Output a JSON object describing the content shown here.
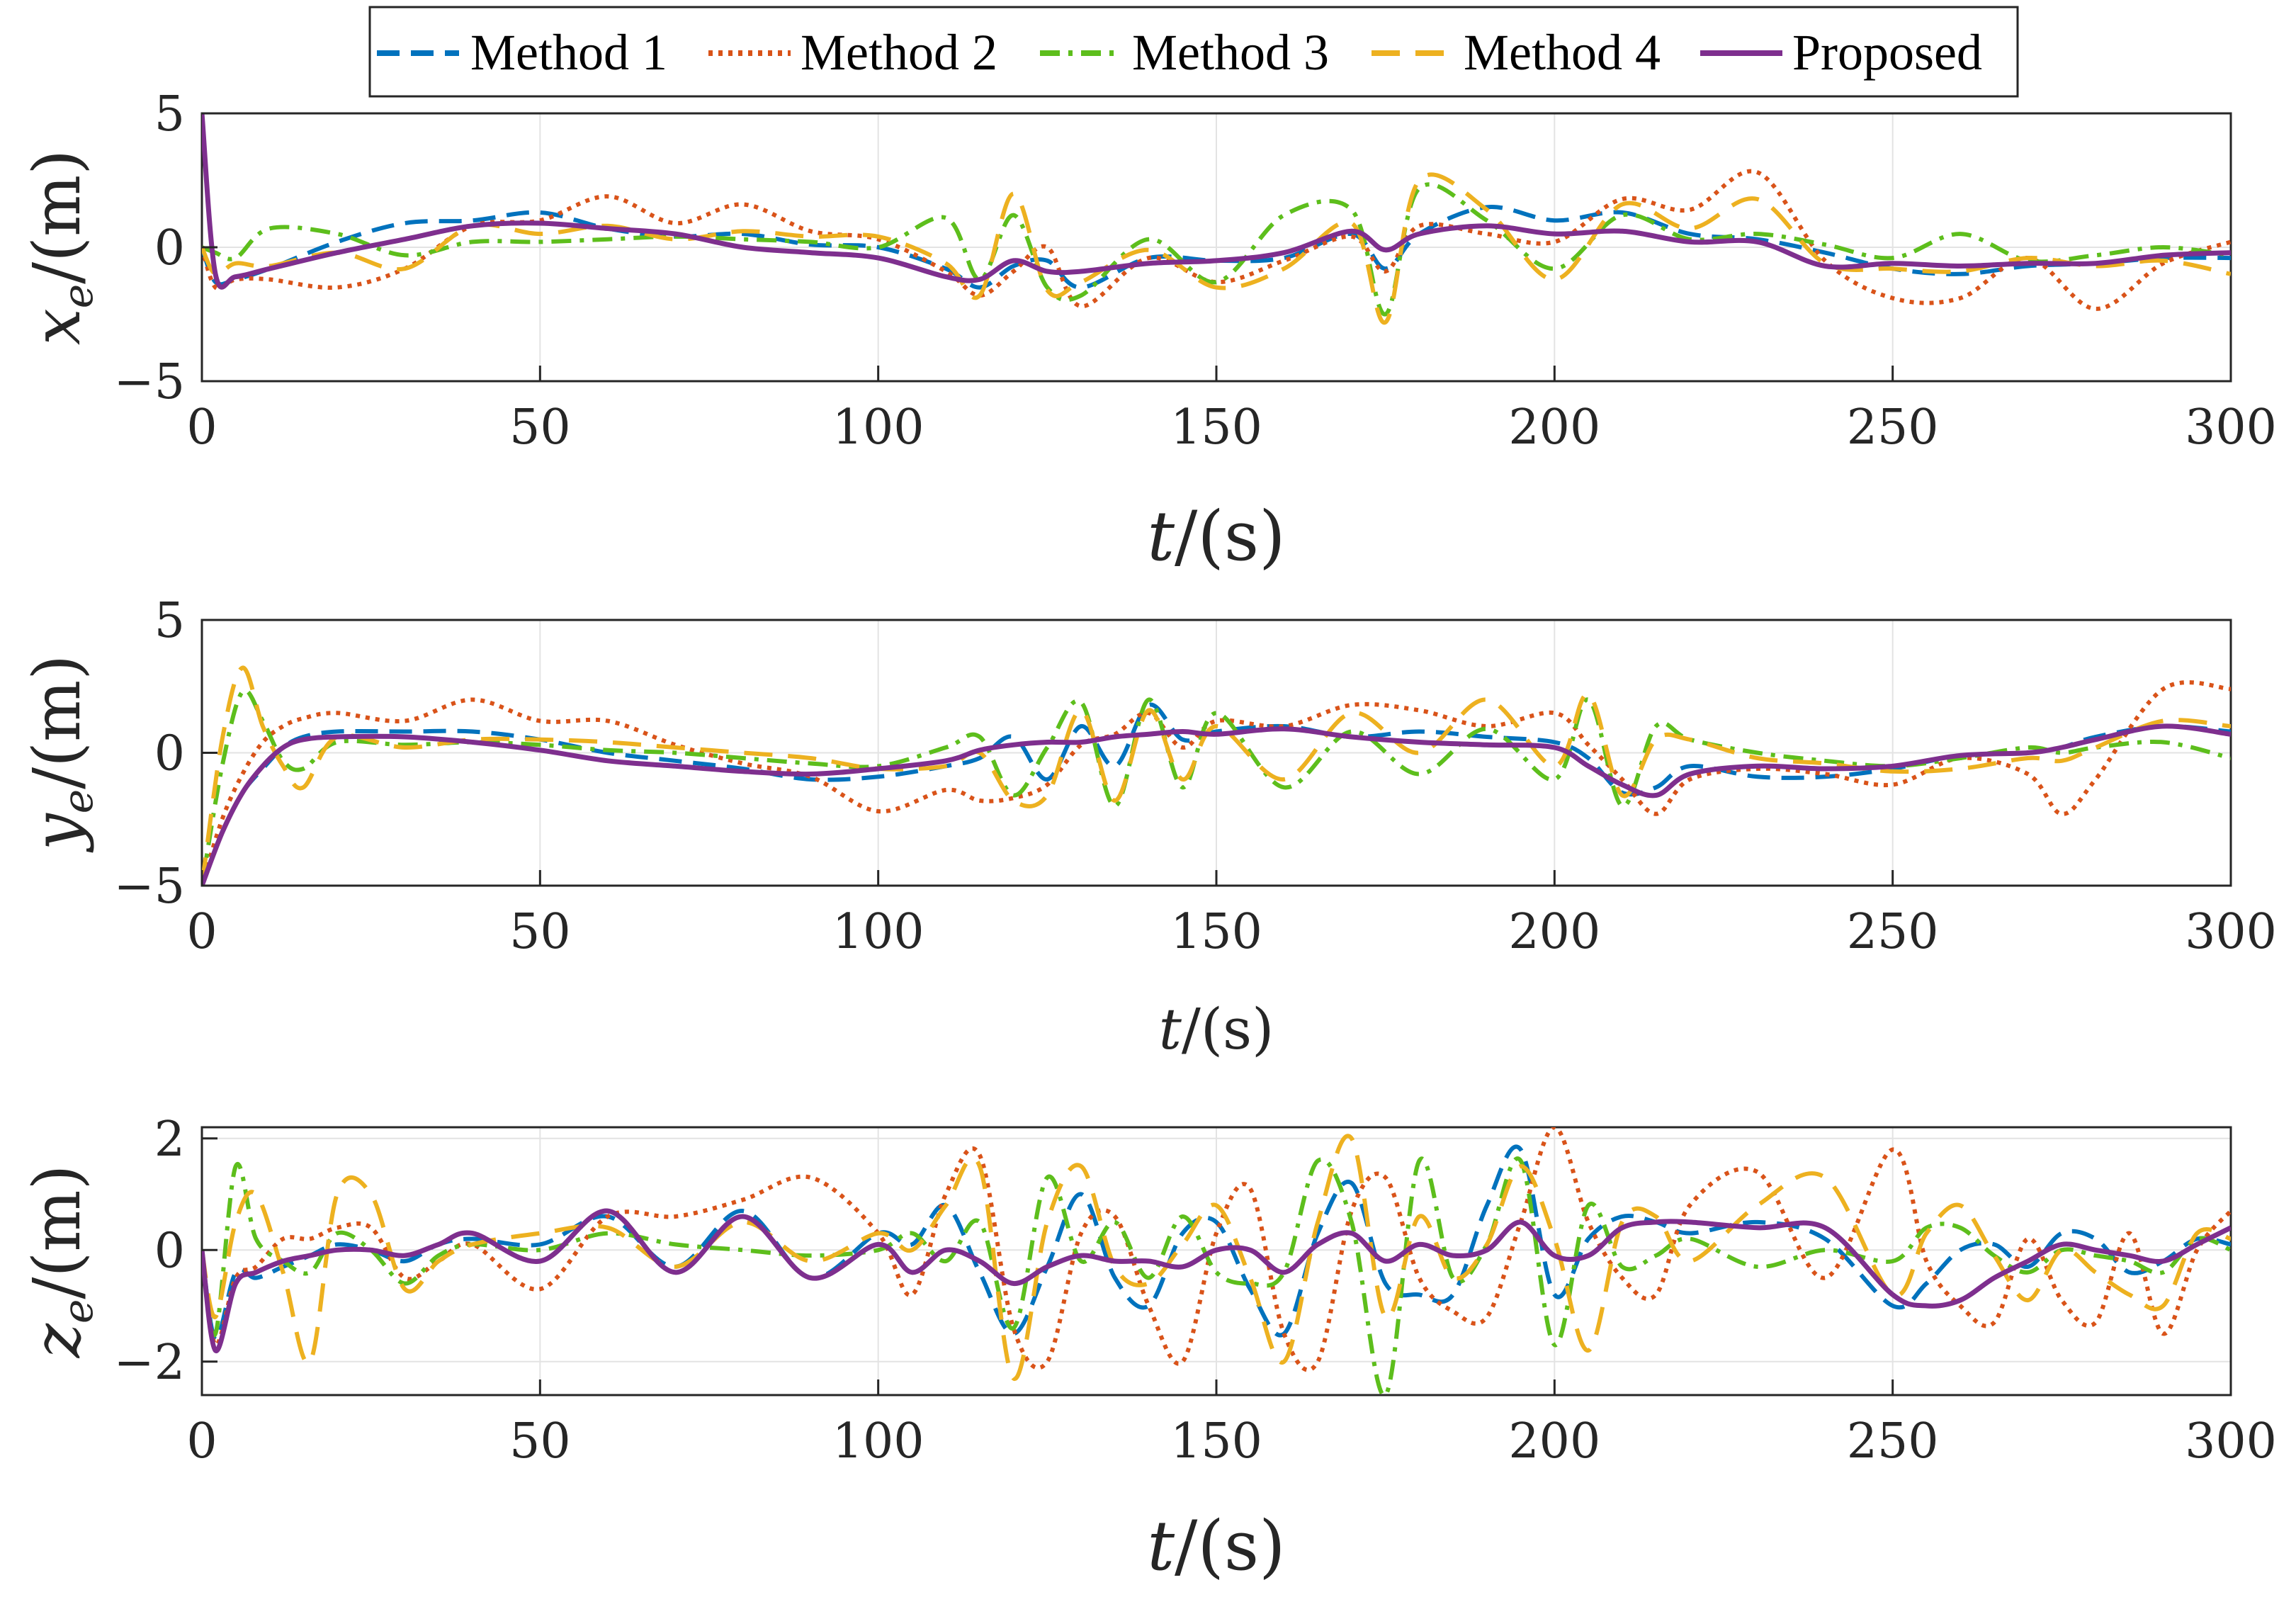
{
  "legend": {
    "entries": [
      {
        "label": "Method 1",
        "color": "#0072BD",
        "dash": "dashed"
      },
      {
        "label": "Method 2",
        "color": "#D95319",
        "dash": "dotted"
      },
      {
        "label": "Method 3",
        "color": "#5DBE1C",
        "dash": "dashdot"
      },
      {
        "label": "Method 4",
        "color": "#EDB120",
        "dash": "longdash"
      },
      {
        "label": "Proposed",
        "color": "#7E2F8E",
        "dash": "solid"
      }
    ]
  },
  "chart_data": [
    {
      "type": "line",
      "ylabel": "x_e/(m)",
      "xlabel": "t/(s)",
      "xlim": [
        0,
        300
      ],
      "ylim": [
        -5,
        5
      ],
      "xticks": [
        "0",
        "50",
        "100",
        "150",
        "200",
        "250",
        "300"
      ],
      "yticks": [
        "5",
        "0",
        "−5"
      ],
      "x": [
        0,
        2,
        5,
        10,
        20,
        30,
        40,
        50,
        60,
        70,
        80,
        90,
        100,
        110,
        115,
        120,
        125,
        130,
        140,
        150,
        160,
        170,
        175,
        180,
        190,
        200,
        210,
        220,
        230,
        240,
        250,
        260,
        270,
        280,
        290,
        300
      ],
      "series": [
        {
          "name": "Method 1",
          "values": [
            0,
            -1.3,
            -1.2,
            -0.8,
            0.2,
            0.9,
            1.0,
            1.3,
            0.7,
            0.4,
            0.5,
            0.1,
            0.0,
            -0.8,
            -1.5,
            -0.7,
            -0.5,
            -1.5,
            -0.4,
            -0.5,
            -0.4,
            0.5,
            -0.8,
            0.5,
            1.5,
            1.0,
            1.3,
            0.5,
            0.3,
            -0.2,
            -0.8,
            -1.0,
            -0.7,
            -0.6,
            -0.4,
            -0.4
          ]
        },
        {
          "name": "Method 2",
          "values": [
            0,
            -1.5,
            -1.2,
            -1.2,
            -1.5,
            -0.8,
            0.8,
            1.0,
            1.9,
            0.9,
            1.6,
            0.6,
            0.3,
            -0.9,
            -1.8,
            -0.9,
            0.0,
            -2.2,
            -0.4,
            -1.3,
            -0.5,
            0.4,
            -0.9,
            0.8,
            0.5,
            0.2,
            1.8,
            1.4,
            2.8,
            -0.5,
            -1.9,
            -1.9,
            -0.4,
            -2.3,
            -0.6,
            0.2
          ]
        },
        {
          "name": "Method 3",
          "values": [
            0,
            -0.2,
            -0.4,
            0.7,
            0.5,
            -0.3,
            0.2,
            0.2,
            0.3,
            0.4,
            0.3,
            0.2,
            0.0,
            1.1,
            -1.2,
            1.2,
            -1.5,
            -1.8,
            0.3,
            -1.3,
            1.2,
            1.4,
            -2.5,
            2.2,
            1.0,
            -0.8,
            1.2,
            0.3,
            0.5,
            0.1,
            -0.4,
            0.5,
            -0.5,
            -0.3,
            0.0,
            -0.3
          ]
        },
        {
          "name": "Method 4",
          "values": [
            0,
            -1.0,
            -0.6,
            -0.7,
            -0.2,
            -0.8,
            0.8,
            0.5,
            0.8,
            0.3,
            0.6,
            0.4,
            0.4,
            -0.6,
            -1.8,
            2.0,
            -1.6,
            -1.3,
            -0.1,
            -1.5,
            -0.8,
            0.9,
            -2.8,
            2.5,
            1.4,
            -1.2,
            1.6,
            0.7,
            1.8,
            -0.6,
            -0.8,
            -0.9,
            -0.4,
            -0.7,
            -0.5,
            -1.0
          ]
        },
        {
          "name": "Proposed",
          "values": [
            5,
            -1.0,
            -1.1,
            -0.8,
            -0.2,
            0.3,
            0.8,
            0.9,
            0.7,
            0.5,
            0.0,
            -0.2,
            -0.4,
            -1.1,
            -1.2,
            -0.5,
            -0.9,
            -0.9,
            -0.6,
            -0.5,
            -0.2,
            0.6,
            -0.1,
            0.5,
            0.8,
            0.5,
            0.6,
            0.2,
            0.2,
            -0.7,
            -0.6,
            -0.7,
            -0.6,
            -0.6,
            -0.3,
            -0.2
          ]
        }
      ]
    },
    {
      "type": "line",
      "ylabel": "y_e/(m)",
      "xlabel": "t/(s)",
      "xlim": [
        0,
        300
      ],
      "ylim": [
        -5,
        5
      ],
      "xticks": [
        "0",
        "50",
        "100",
        "150",
        "200",
        "250",
        "300"
      ],
      "yticks": [
        "5",
        "0",
        "−5"
      ],
      "x": [
        0,
        3,
        6,
        9,
        12,
        15,
        20,
        30,
        40,
        50,
        60,
        70,
        80,
        90,
        100,
        110,
        115,
        120,
        125,
        130,
        135,
        140,
        145,
        150,
        160,
        170,
        180,
        190,
        200,
        205,
        210,
        215,
        220,
        230,
        240,
        250,
        260,
        270,
        275,
        280,
        290,
        300
      ],
      "series": [
        {
          "name": "Method 1",
          "values": [
            -5,
            -3.0,
            -1.5,
            -0.6,
            0.2,
            0.6,
            0.8,
            0.8,
            0.8,
            0.5,
            0.0,
            -0.3,
            -0.6,
            -1.0,
            -0.9,
            -0.5,
            -0.2,
            0.6,
            -1.0,
            1.0,
            -0.5,
            1.8,
            0.5,
            0.8,
            1.0,
            0.6,
            0.8,
            0.6,
            0.4,
            -0.2,
            -1.5,
            -1.3,
            -0.5,
            -0.9,
            -0.9,
            -0.6,
            -0.1,
            0.0,
            0.2,
            0.6,
            1.0,
            0.8
          ]
        },
        {
          "name": "Method 2",
          "values": [
            -5,
            -2.5,
            -0.8,
            0.4,
            1.0,
            1.3,
            1.5,
            1.2,
            2.0,
            1.2,
            1.2,
            0.3,
            -0.4,
            -0.9,
            -2.2,
            -1.4,
            -1.8,
            -1.7,
            -1.2,
            0.3,
            0.7,
            1.5,
            0.2,
            1.2,
            1.0,
            1.8,
            1.6,
            1.0,
            1.5,
            0.3,
            -1.0,
            -2.3,
            -1.0,
            -0.6,
            -0.8,
            -1.2,
            -0.2,
            -0.8,
            -2.3,
            -1.0,
            2.4,
            2.4
          ]
        },
        {
          "name": "Method 3",
          "values": [
            -5,
            -0.5,
            2.3,
            1.2,
            -0.3,
            -0.6,
            0.4,
            0.3,
            0.4,
            0.3,
            0.1,
            0.0,
            -0.2,
            -0.4,
            -0.5,
            0.2,
            0.6,
            -1.6,
            0.2,
            1.9,
            -2.0,
            2.0,
            -1.3,
            1.5,
            -1.3,
            0.8,
            -0.8,
            0.9,
            -1.0,
            2.0,
            -2.0,
            1.0,
            0.5,
            0.0,
            -0.3,
            -0.5,
            -0.2,
            0.2,
            0.0,
            0.2,
            0.4,
            -0.2
          ]
        },
        {
          "name": "Method 4",
          "values": [
            -5,
            0.5,
            3.2,
            1.0,
            -0.5,
            -1.3,
            0.6,
            0.2,
            0.5,
            0.5,
            0.4,
            0.2,
            0.0,
            -0.2,
            -0.6,
            -0.5,
            0.0,
            -1.8,
            -1.6,
            1.6,
            -1.8,
            1.6,
            -1.0,
            1.0,
            -1.0,
            1.5,
            0.0,
            2.0,
            -0.5,
            2.2,
            -1.6,
            0.5,
            0.5,
            -0.2,
            -0.4,
            -0.7,
            -0.6,
            -0.2,
            -0.3,
            0.2,
            1.2,
            1.0
          ]
        },
        {
          "name": "Proposed",
          "values": [
            -5,
            -3.0,
            -1.5,
            -0.5,
            0.2,
            0.5,
            0.6,
            0.6,
            0.4,
            0.1,
            -0.3,
            -0.5,
            -0.7,
            -0.8,
            -0.6,
            -0.3,
            0.1,
            0.3,
            0.4,
            0.4,
            0.6,
            0.7,
            0.8,
            0.7,
            0.9,
            0.6,
            0.4,
            0.3,
            0.2,
            -0.5,
            -1.2,
            -1.6,
            -0.8,
            -0.5,
            -0.6,
            -0.5,
            -0.1,
            0.0,
            0.2,
            0.5,
            1.0,
            0.7
          ]
        }
      ]
    },
    {
      "type": "line",
      "ylabel": "z_e/(m)",
      "xlabel": "t/(s)",
      "xlim": [
        0,
        300
      ],
      "ylim": [
        -2.6,
        2.2
      ],
      "xticks": [
        "0",
        "50",
        "100",
        "150",
        "200",
        "250",
        "300"
      ],
      "yticks": [
        "2",
        "0",
        "−2"
      ],
      "x": [
        0,
        2,
        5,
        8,
        12,
        16,
        20,
        25,
        30,
        35,
        40,
        50,
        60,
        70,
        80,
        90,
        100,
        105,
        110,
        115,
        120,
        125,
        130,
        135,
        140,
        145,
        150,
        155,
        160,
        165,
        170,
        175,
        180,
        185,
        190,
        195,
        200,
        205,
        210,
        215,
        220,
        230,
        240,
        250,
        255,
        260,
        265,
        270,
        275,
        280,
        285,
        290,
        295,
        300
      ],
      "series": [
        {
          "name": "Method 1",
          "values": [
            0,
            -1.6,
            -0.4,
            -0.5,
            -0.3,
            -0.1,
            0.1,
            0.0,
            -0.2,
            0.1,
            0.2,
            0.1,
            0.6,
            -0.3,
            0.7,
            -0.5,
            0.3,
            0.1,
            0.8,
            -0.4,
            -1.5,
            -0.3,
            1.0,
            -0.5,
            -1.0,
            0.3,
            0.5,
            -0.7,
            -1.5,
            0.3,
            1.2,
            -0.6,
            -0.8,
            -0.8,
            0.8,
            1.8,
            -0.8,
            0.2,
            0.6,
            0.5,
            0.3,
            0.5,
            0.2,
            -1.0,
            -0.6,
            0.0,
            0.1,
            -0.3,
            0.3,
            0.2,
            -0.4,
            -0.2,
            0.2,
            0.1
          ]
        },
        {
          "name": "Method 2",
          "values": [
            0,
            -1.7,
            -0.5,
            -0.3,
            0.2,
            0.2,
            0.4,
            0.4,
            -0.5,
            -0.2,
            0.1,
            -0.7,
            0.6,
            0.6,
            0.9,
            1.3,
            0.3,
            -0.8,
            1.0,
            1.7,
            -1.4,
            -2.0,
            0.3,
            0.6,
            -1.0,
            -2.0,
            0.3,
            1.1,
            -1.5,
            -2.0,
            0.7,
            1.3,
            -0.5,
            -1.1,
            -1.2,
            0.5,
            2.2,
            0.5,
            -0.5,
            -0.8,
            0.8,
            1.4,
            -0.5,
            1.8,
            -0.2,
            -1.0,
            -1.3,
            0.2,
            -0.9,
            -1.3,
            0.3,
            -1.5,
            0.0,
            0.7
          ]
        },
        {
          "name": "Method 3",
          "values": [
            0,
            -1.5,
            1.5,
            0.2,
            -0.2,
            -0.4,
            0.3,
            0.0,
            -0.6,
            -0.1,
            0.1,
            0.0,
            0.3,
            0.1,
            0.0,
            -0.1,
            0.0,
            0.3,
            -0.2,
            0.5,
            -1.4,
            1.3,
            -0.2,
            0.5,
            -0.5,
            0.6,
            -0.4,
            -0.6,
            -0.4,
            1.6,
            0.5,
            -2.6,
            1.6,
            -0.5,
            0.1,
            1.6,
            -1.7,
            0.8,
            -0.3,
            -0.1,
            0.2,
            -0.3,
            0.0,
            -0.2,
            0.4,
            0.4,
            -0.1,
            -0.4,
            0.0,
            -0.1,
            -0.2,
            -0.4,
            0.2,
            0.0
          ]
        },
        {
          "name": "Method 4",
          "values": [
            0,
            -1.2,
            0.5,
            1.0,
            -0.4,
            -2.0,
            1.0,
            1.0,
            -0.7,
            -0.2,
            0.1,
            0.3,
            0.4,
            -0.3,
            0.5,
            -0.2,
            0.3,
            0.0,
            0.8,
            1.5,
            -2.3,
            0.5,
            1.5,
            -0.3,
            -0.6,
            0.1,
            0.8,
            -0.5,
            -2.0,
            0.5,
            2.0,
            -1.2,
            0.6,
            -0.5,
            0.1,
            1.5,
            0.2,
            -1.8,
            0.5,
            0.6,
            -0.2,
            0.8,
            1.3,
            -0.8,
            0.3,
            0.8,
            -0.1,
            -0.9,
            0.0,
            -0.4,
            -0.8,
            -1.0,
            0.3,
            0.2
          ]
        },
        {
          "name": "Proposed",
          "values": [
            0,
            -1.8,
            -0.6,
            -0.4,
            -0.2,
            -0.1,
            0.0,
            0.0,
            -0.1,
            0.1,
            0.3,
            -0.2,
            0.7,
            -0.4,
            0.6,
            -0.5,
            0.1,
            -0.4,
            0.0,
            -0.2,
            -0.6,
            -0.3,
            -0.1,
            -0.2,
            -0.2,
            -0.3,
            0.0,
            0.0,
            -0.4,
            0.1,
            0.3,
            -0.2,
            0.1,
            -0.1,
            0.0,
            0.5,
            -0.1,
            -0.1,
            0.4,
            0.5,
            0.5,
            0.4,
            0.4,
            -0.8,
            -1.0,
            -0.9,
            -0.5,
            -0.2,
            0.1,
            0.0,
            -0.1,
            -0.2,
            0.1,
            0.4
          ]
        }
      ]
    }
  ]
}
